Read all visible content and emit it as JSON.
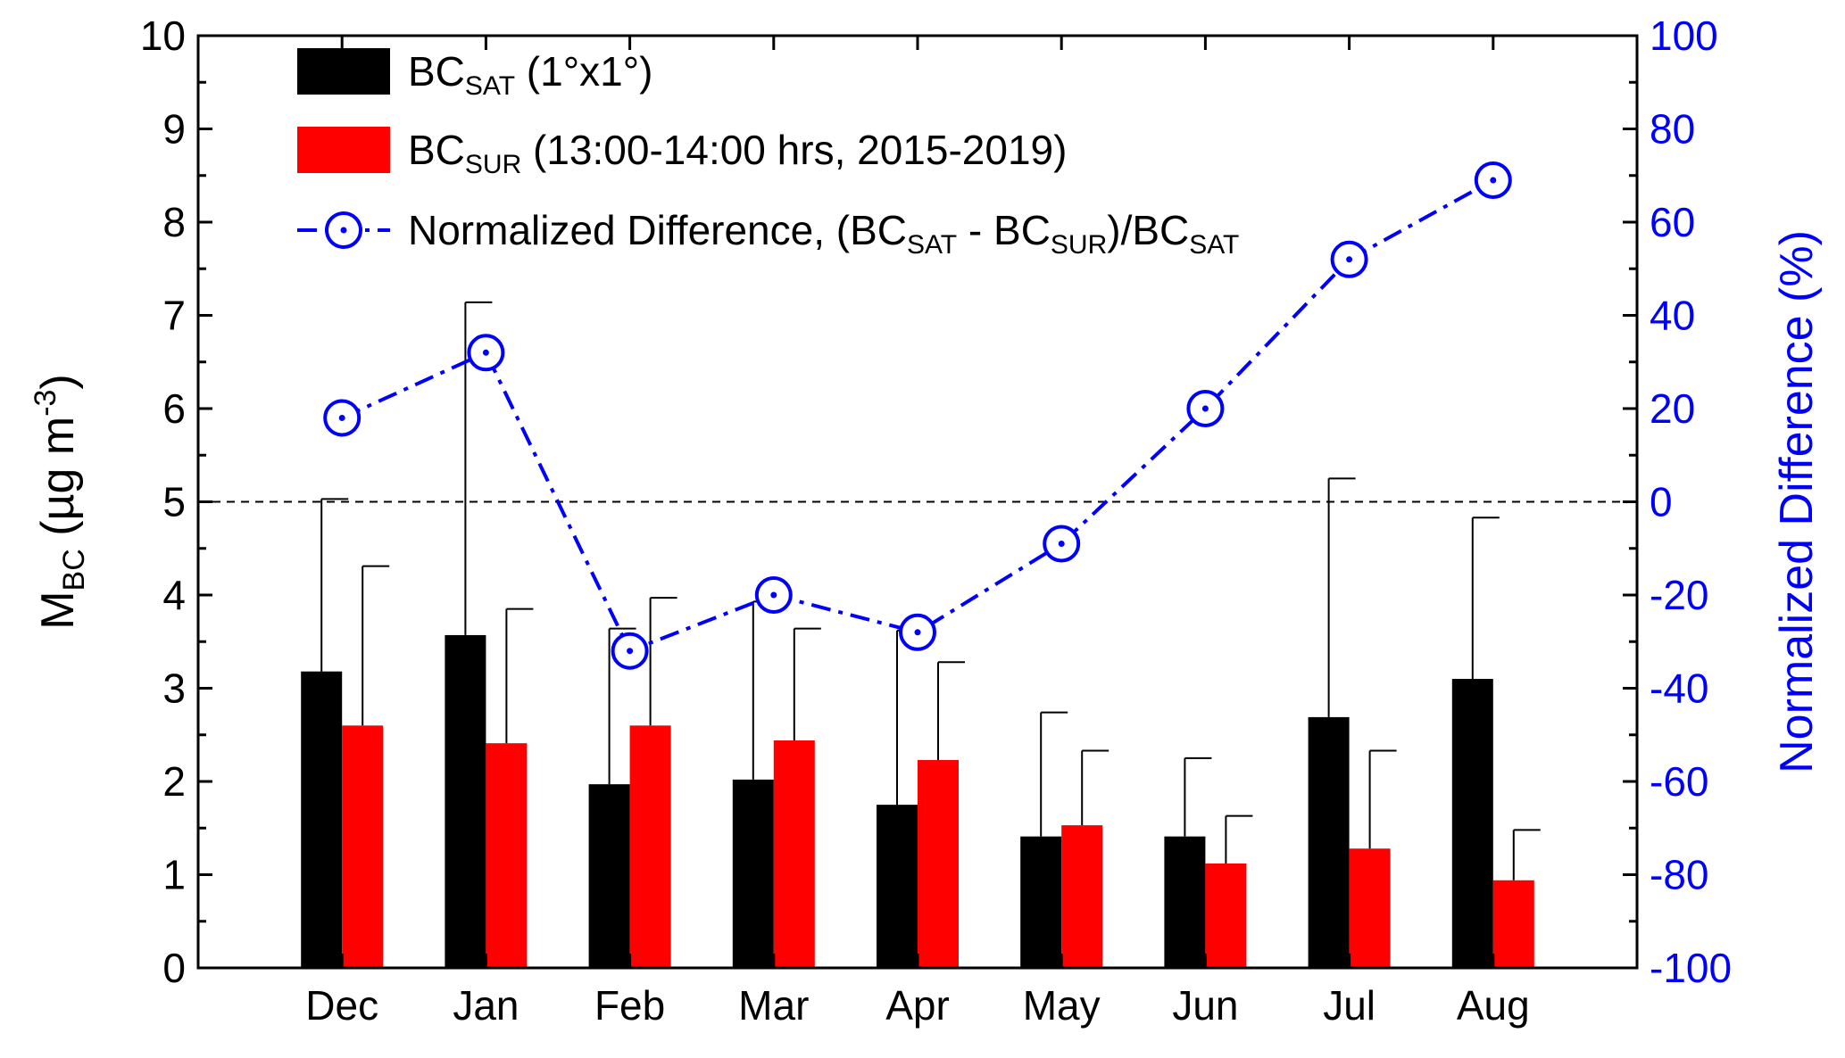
{
  "chart_data": {
    "type": "bar",
    "categories": [
      "Dec",
      "Jan",
      "Feb",
      "Mar",
      "Apr",
      "May",
      "Jun",
      "Jul",
      "Aug"
    ],
    "ylabel": {
      "main": "M",
      "sub": "BC",
      "rest": " (µg m",
      "sup": "-3",
      "close": ")"
    },
    "y2label": "Normalized Difference (%)",
    "ylim": [
      0,
      10
    ],
    "yticks": [
      "0",
      "1",
      "2",
      "3",
      "4",
      "5",
      "6",
      "7",
      "8",
      "9",
      "10"
    ],
    "y2lim": [
      -100,
      100
    ],
    "y2ticks": [
      "-100",
      "-80",
      "-60",
      "-40",
      "-20",
      "0",
      "20",
      "40",
      "60",
      "80",
      "100"
    ],
    "reference_line": {
      "axis": "y2",
      "value": 0,
      "style": "dashed"
    },
    "series": [
      {
        "kind": "bar",
        "axis": "y",
        "color": "#000000",
        "legend": {
          "main": "BC",
          "sub": "SAT",
          "rest": " (1°x1°)"
        },
        "values": [
          3.18,
          3.57,
          1.97,
          2.02,
          1.75,
          1.41,
          1.41,
          2.69,
          3.1
        ],
        "error_upper": [
          5.03,
          7.14,
          3.64,
          3.93,
          3.62,
          2.74,
          2.25,
          5.25,
          4.83
        ]
      },
      {
        "kind": "bar",
        "axis": "y",
        "color": "#ff0000",
        "legend": {
          "main": "BC",
          "sub": "SUR",
          "rest": " (13:00-14:00 hrs, 2015-2019)"
        },
        "values": [
          2.6,
          2.41,
          2.6,
          2.44,
          2.23,
          1.53,
          1.12,
          1.28,
          0.94
        ],
        "error_upper": [
          4.31,
          3.85,
          3.97,
          3.64,
          3.28,
          2.33,
          1.63,
          2.33,
          1.48
        ]
      },
      {
        "kind": "line",
        "axis": "y2",
        "color": "#0000ff",
        "line_style": "dash-dot",
        "marker": "circle-dot",
        "legend_parts": [
          {
            "t": "Normalized Difference, (BC"
          },
          {
            "t": "SAT",
            "sub": true
          },
          {
            "t": " - BC"
          },
          {
            "t": "SUR",
            "sub": true
          },
          {
            "t": ")/BC"
          },
          {
            "t": "SAT",
            "sub": true
          }
        ],
        "values": [
          18,
          32,
          -32,
          -20,
          -28,
          -9,
          20,
          52,
          69
        ]
      }
    ]
  }
}
